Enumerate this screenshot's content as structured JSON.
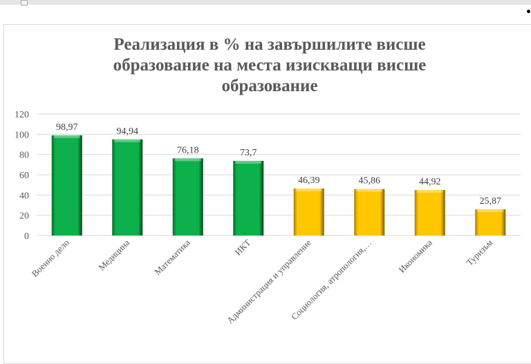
{
  "chart_data": {
    "type": "bar",
    "title": "Реализация в % на завършилите висше образование на места изискващи висше образование",
    "categories": [
      "Военно дело",
      "Медицина",
      "Математика",
      "ИКТ",
      "Администрация и управление",
      "Социология, атропология,…",
      "Икономика",
      "Туризъм"
    ],
    "values": [
      98.97,
      94.94,
      76.18,
      73.7,
      46.39,
      45.86,
      44.92,
      25.87
    ],
    "value_labels": [
      "98,97",
      "94,94",
      "76,18",
      "73,7",
      "46,39",
      "45,86",
      "44,92",
      "25,87"
    ],
    "colors": [
      "#0cb14b",
      "#0cb14b",
      "#0cb14b",
      "#0cb14b",
      "#ffc700",
      "#ffc700",
      "#ffc700",
      "#ffc700"
    ],
    "yticks": [
      0,
      20,
      40,
      60,
      80,
      100,
      120
    ],
    "ylim": [
      0,
      120
    ],
    "xlabel": "",
    "ylabel": "",
    "grid": true,
    "legend": "none"
  }
}
